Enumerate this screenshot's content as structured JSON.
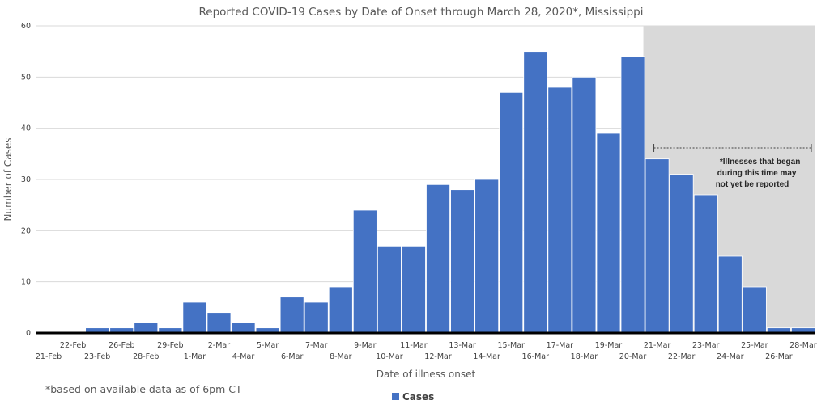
{
  "chart_data": {
    "type": "bar",
    "title": "Reported COVID-19 Cases by Date of Onset through March 28, 2020*, Mississippi",
    "xlabel": "Date of illness onset",
    "ylabel": "Number of Cases",
    "ylim": [
      0,
      60
    ],
    "yticks": [
      0,
      10,
      20,
      30,
      40,
      50,
      60
    ],
    "grid": "horizontal",
    "legend": "bottom-center",
    "categories": [
      "21-Feb",
      "22-Feb",
      "23-Feb",
      "26-Feb",
      "28-Feb",
      "29-Feb",
      "1-Mar",
      "2-Mar",
      "4-Mar",
      "5-Mar",
      "6-Mar",
      "7-Mar",
      "8-Mar",
      "9-Mar",
      "10-Mar",
      "11-Mar",
      "12-Mar",
      "13-Mar",
      "14-Mar",
      "15-Mar",
      "16-Mar",
      "17-Mar",
      "18-Mar",
      "19-Mar",
      "20-Mar",
      "21-Mar",
      "22-Mar",
      "23-Mar",
      "24-Mar",
      "25-Mar",
      "26-Mar",
      "28-Mar"
    ],
    "series": [
      {
        "name": "Cases",
        "color": "#4472c4",
        "values": [
          0,
          0,
          1,
          1,
          2,
          1,
          6,
          4,
          2,
          1,
          7,
          6,
          9,
          24,
          17,
          17,
          29,
          28,
          30,
          47,
          55,
          48,
          50,
          39,
          54,
          34,
          31,
          27,
          15,
          9,
          1,
          1
        ]
      }
    ],
    "shaded_region_from": "21-Mar",
    "annotation": [
      "*Illnesses that began",
      "during this time may",
      "not yet be reported"
    ],
    "footnote": "*based on available data as of 6pm CT"
  }
}
